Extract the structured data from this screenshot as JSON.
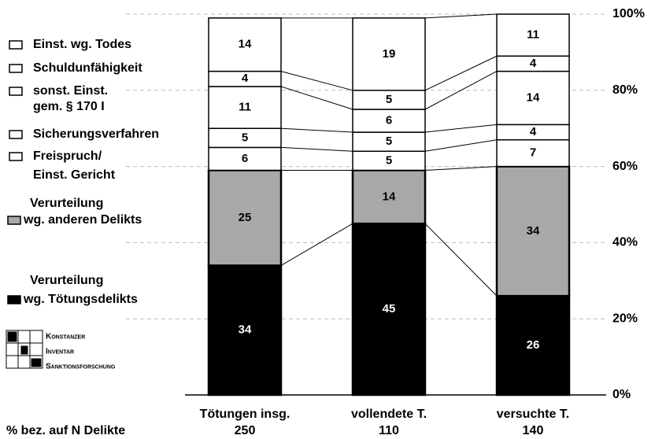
{
  "chart_data": {
    "type": "stacked_bar",
    "categories": [
      "Tötungen insg.",
      "vollendete T.",
      "versuchte T."
    ],
    "n_title": "% bez. auf N Delikte",
    "n_values": [
      250,
      110,
      140
    ],
    "series": [
      {
        "name": [
          "Verurteilung",
          "wg. Tötungsdelikts"
        ],
        "color": "#000000",
        "values": [
          34,
          45,
          26
        ]
      },
      {
        "name": [
          "Verurteilung",
          "wg. anderen Delikts"
        ],
        "color": "#a8a8a8",
        "values": [
          25,
          14,
          34
        ]
      },
      {
        "name": [
          "Freispruch/",
          "Einst. Gericht"
        ],
        "color": "#ffffff",
        "values": [
          6,
          5,
          7
        ]
      },
      {
        "name": [
          "Sicherungsverfahren"
        ],
        "color": "#ffffff",
        "values": [
          5,
          5,
          4
        ]
      },
      {
        "name": [
          "sonst. Einst.",
          "gem. § 170 I"
        ],
        "color": "#ffffff",
        "values": [
          11,
          6,
          14
        ]
      },
      {
        "name": [
          "Schuldunfähigkeit"
        ],
        "color": "#ffffff",
        "values": [
          4,
          5,
          4
        ]
      },
      {
        "name": [
          "Einst. wg. Todes"
        ],
        "color": "#ffffff",
        "values": [
          14,
          19,
          11
        ]
      }
    ],
    "ylim": [
      0,
      100
    ],
    "yticks": [
      {
        "value": 0,
        "label": "0%"
      },
      {
        "value": 20,
        "label": "20%"
      },
      {
        "value": 40,
        "label": "40%"
      },
      {
        "value": 60,
        "label": "60%"
      },
      {
        "value": 80,
        "label": "80%"
      },
      {
        "value": 100,
        "label": "100%"
      }
    ],
    "grid": true,
    "logo": [
      "Konstanzer",
      "Inventar",
      "Sanktionsforschung"
    ]
  }
}
